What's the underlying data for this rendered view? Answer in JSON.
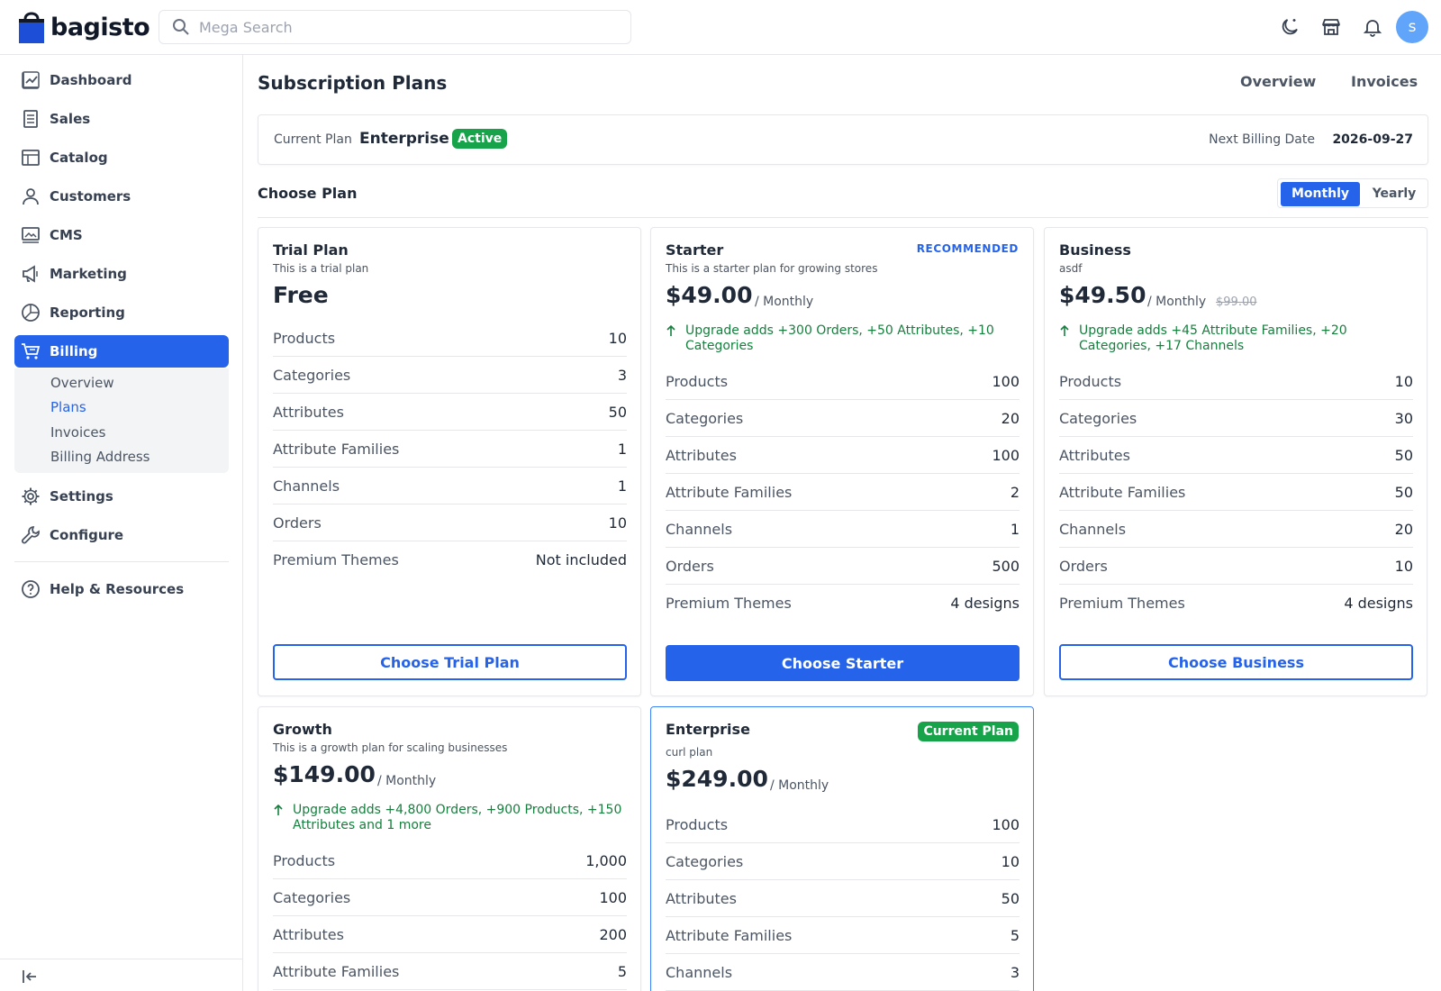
{
  "app": {
    "logo_text": "bagisto",
    "avatar_initial": "s"
  },
  "search": {
    "placeholder": "Mega Search"
  },
  "header_icons": [
    "moon-icon",
    "store-icon",
    "bell-icon"
  ],
  "sidebar": {
    "items": [
      {
        "label": "Dashboard",
        "icon": "dashboard-icon"
      },
      {
        "label": "Sales",
        "icon": "sales-icon"
      },
      {
        "label": "Catalog",
        "icon": "catalog-icon"
      },
      {
        "label": "Customers",
        "icon": "customers-icon"
      },
      {
        "label": "CMS",
        "icon": "cms-icon"
      },
      {
        "label": "Marketing",
        "icon": "megaphone-icon"
      },
      {
        "label": "Reporting",
        "icon": "pie-chart-icon"
      },
      {
        "label": "Billing",
        "icon": "cart-icon",
        "active": true
      },
      {
        "label": "Settings",
        "icon": "gear-icon"
      },
      {
        "label": "Configure",
        "icon": "wrench-icon"
      },
      {
        "label": "Help & Resources",
        "icon": "help-icon"
      }
    ],
    "billing_sub": [
      {
        "label": "Overview"
      },
      {
        "label": "Plans",
        "active": true
      },
      {
        "label": "Invoices"
      },
      {
        "label": "Billing Address"
      }
    ]
  },
  "main": {
    "title": "Subscription Plans",
    "links": [
      "Overview",
      "Invoices"
    ],
    "current": {
      "label": "Current Plan",
      "name": "Enterprise",
      "status": "Active",
      "billing_label": "Next Billing Date",
      "billing_date": "2026-09-27"
    },
    "choose_title": "Choose Plan",
    "toggle": {
      "monthly": "Monthly",
      "yearly": "Yearly",
      "selected": "Monthly"
    }
  },
  "plans": [
    {
      "name": "Trial Plan",
      "desc": "This is a trial plan",
      "price": "Free",
      "features": [
        {
          "label": "Products",
          "value": "10"
        },
        {
          "label": "Categories",
          "value": "3"
        },
        {
          "label": "Attributes",
          "value": "50"
        },
        {
          "label": "Attribute Families",
          "value": "1"
        },
        {
          "label": "Channels",
          "value": "1"
        },
        {
          "label": "Orders",
          "value": "10"
        },
        {
          "label": "Premium Themes",
          "value": "Not included"
        }
      ],
      "button": "Choose Trial Plan"
    },
    {
      "name": "Starter",
      "tag": "RECOMMENDED",
      "desc": "This is a starter plan for growing stores",
      "price": "$49.00",
      "period": "/ Monthly",
      "upgrade": "Upgrade adds +300 Orders, +50 Attributes, +10 Categories",
      "features": [
        {
          "label": "Products",
          "value": "100"
        },
        {
          "label": "Categories",
          "value": "20"
        },
        {
          "label": "Attributes",
          "value": "100"
        },
        {
          "label": "Attribute Families",
          "value": "2"
        },
        {
          "label": "Channels",
          "value": "1"
        },
        {
          "label": "Orders",
          "value": "500"
        },
        {
          "label": "Premium Themes",
          "value": "4 designs"
        }
      ],
      "button": "Choose Starter"
    },
    {
      "name": "Business",
      "desc": "asdf",
      "price": "$49.50",
      "period": "/ Monthly",
      "original_price": "$99.00",
      "upgrade": "Upgrade adds +45 Attribute Families, +20 Categories, +17 Channels",
      "features": [
        {
          "label": "Products",
          "value": "10"
        },
        {
          "label": "Categories",
          "value": "30"
        },
        {
          "label": "Attributes",
          "value": "50"
        },
        {
          "label": "Attribute Families",
          "value": "50"
        },
        {
          "label": "Channels",
          "value": "20"
        },
        {
          "label": "Orders",
          "value": "10"
        },
        {
          "label": "Premium Themes",
          "value": "4 designs"
        }
      ],
      "button": "Choose Business"
    },
    {
      "name": "Growth",
      "desc": "This is a growth plan for scaling businesses",
      "price": "$149.00",
      "period": "/ Monthly",
      "upgrade": "Upgrade adds +4,800 Orders, +900 Products, +150 Attributes and 1 more",
      "features": [
        {
          "label": "Products",
          "value": "1,000"
        },
        {
          "label": "Categories",
          "value": "100"
        },
        {
          "label": "Attributes",
          "value": "200"
        },
        {
          "label": "Attribute Families",
          "value": "5"
        }
      ]
    },
    {
      "name": "Enterprise",
      "tag": "Current Plan",
      "desc": "curl plan",
      "price": "$249.00",
      "period": "/ Monthly",
      "features": [
        {
          "label": "Products",
          "value": "100"
        },
        {
          "label": "Categories",
          "value": "10"
        },
        {
          "label": "Attributes",
          "value": "50"
        },
        {
          "label": "Attribute Families",
          "value": "5"
        },
        {
          "label": "Channels",
          "value": "3"
        }
      ]
    }
  ],
  "colors": {
    "primary": "#2563eb",
    "success": "#16a34a",
    "upgrade_text": "#15803d"
  }
}
